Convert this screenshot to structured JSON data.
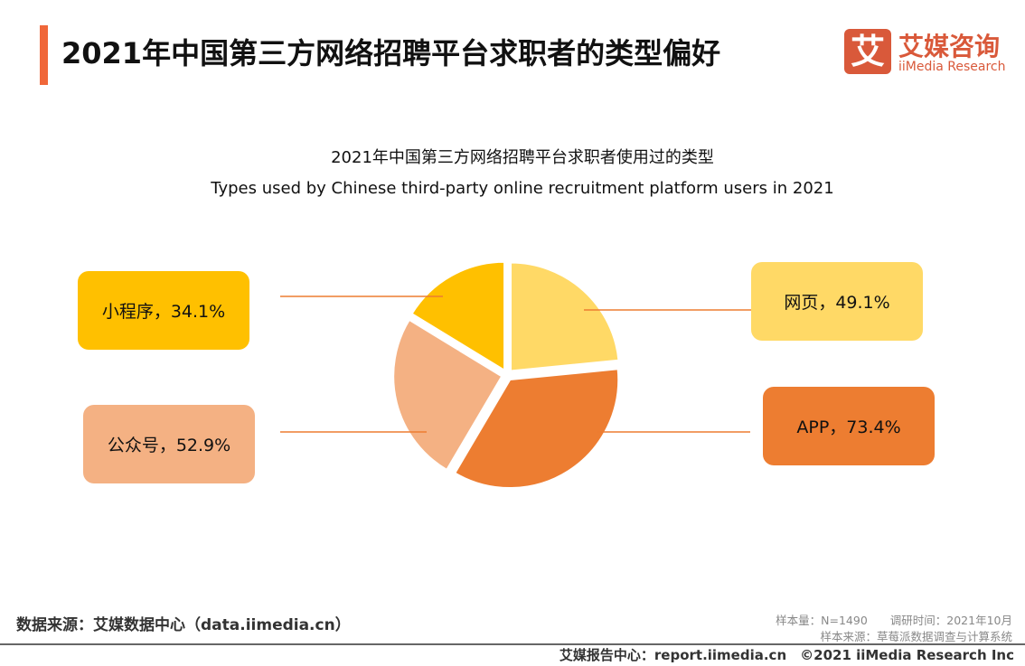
{
  "header": {
    "title": "2021年中国第三方网络招聘平台求职者的类型偏好",
    "logo_mark": "艾",
    "logo_cn": "艾媒咨询",
    "logo_en": "iiMedia Research"
  },
  "chart_data": {
    "type": "pie",
    "title": "2021年中国第三方网络招聘平台求职者使用过的类型",
    "subtitle": "Types used by Chinese third-party online recruitment platform users in 2021",
    "categories": [
      "网页",
      "APP",
      "公众号",
      "小程序"
    ],
    "values": [
      49.1,
      73.4,
      52.9,
      34.1
    ],
    "unit": "%",
    "labels": [
      "网页，49.1%",
      "APP，73.4%",
      "公众号，52.9%",
      "小程序，34.1%"
    ],
    "colors": [
      "#FFD966",
      "#ED7D31",
      "#F4B183",
      "#FFC000"
    ]
  },
  "footer": {
    "source": "数据来源：艾媒数据中心（data.iimedia.cn）",
    "sample": "样本量：N=1490　　调研时间：2021年10月",
    "sample_source": "样本来源：草莓派数据调查与计算系统",
    "report": "艾媒报告中心：report.iimedia.cn　©2021  iiMedia Research  Inc"
  }
}
